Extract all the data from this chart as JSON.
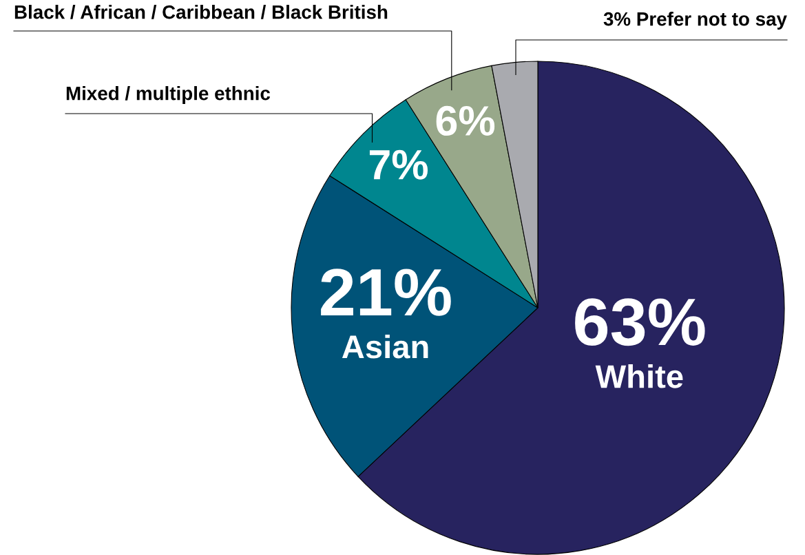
{
  "chart_data": {
    "type": "pie",
    "categories": [
      "White",
      "Asian",
      "Mixed / multiple ethnic",
      "Black / African / Caribbean / Black British",
      "Prefer not to say"
    ],
    "values": [
      63,
      21,
      7,
      6,
      3
    ],
    "colors": [
      "#27235f",
      "#005378",
      "#00868f",
      "#98a88a",
      "#a9aaaf"
    ],
    "value_labels": [
      "63%",
      "21%",
      "7%",
      "6%",
      "3%"
    ]
  }
}
